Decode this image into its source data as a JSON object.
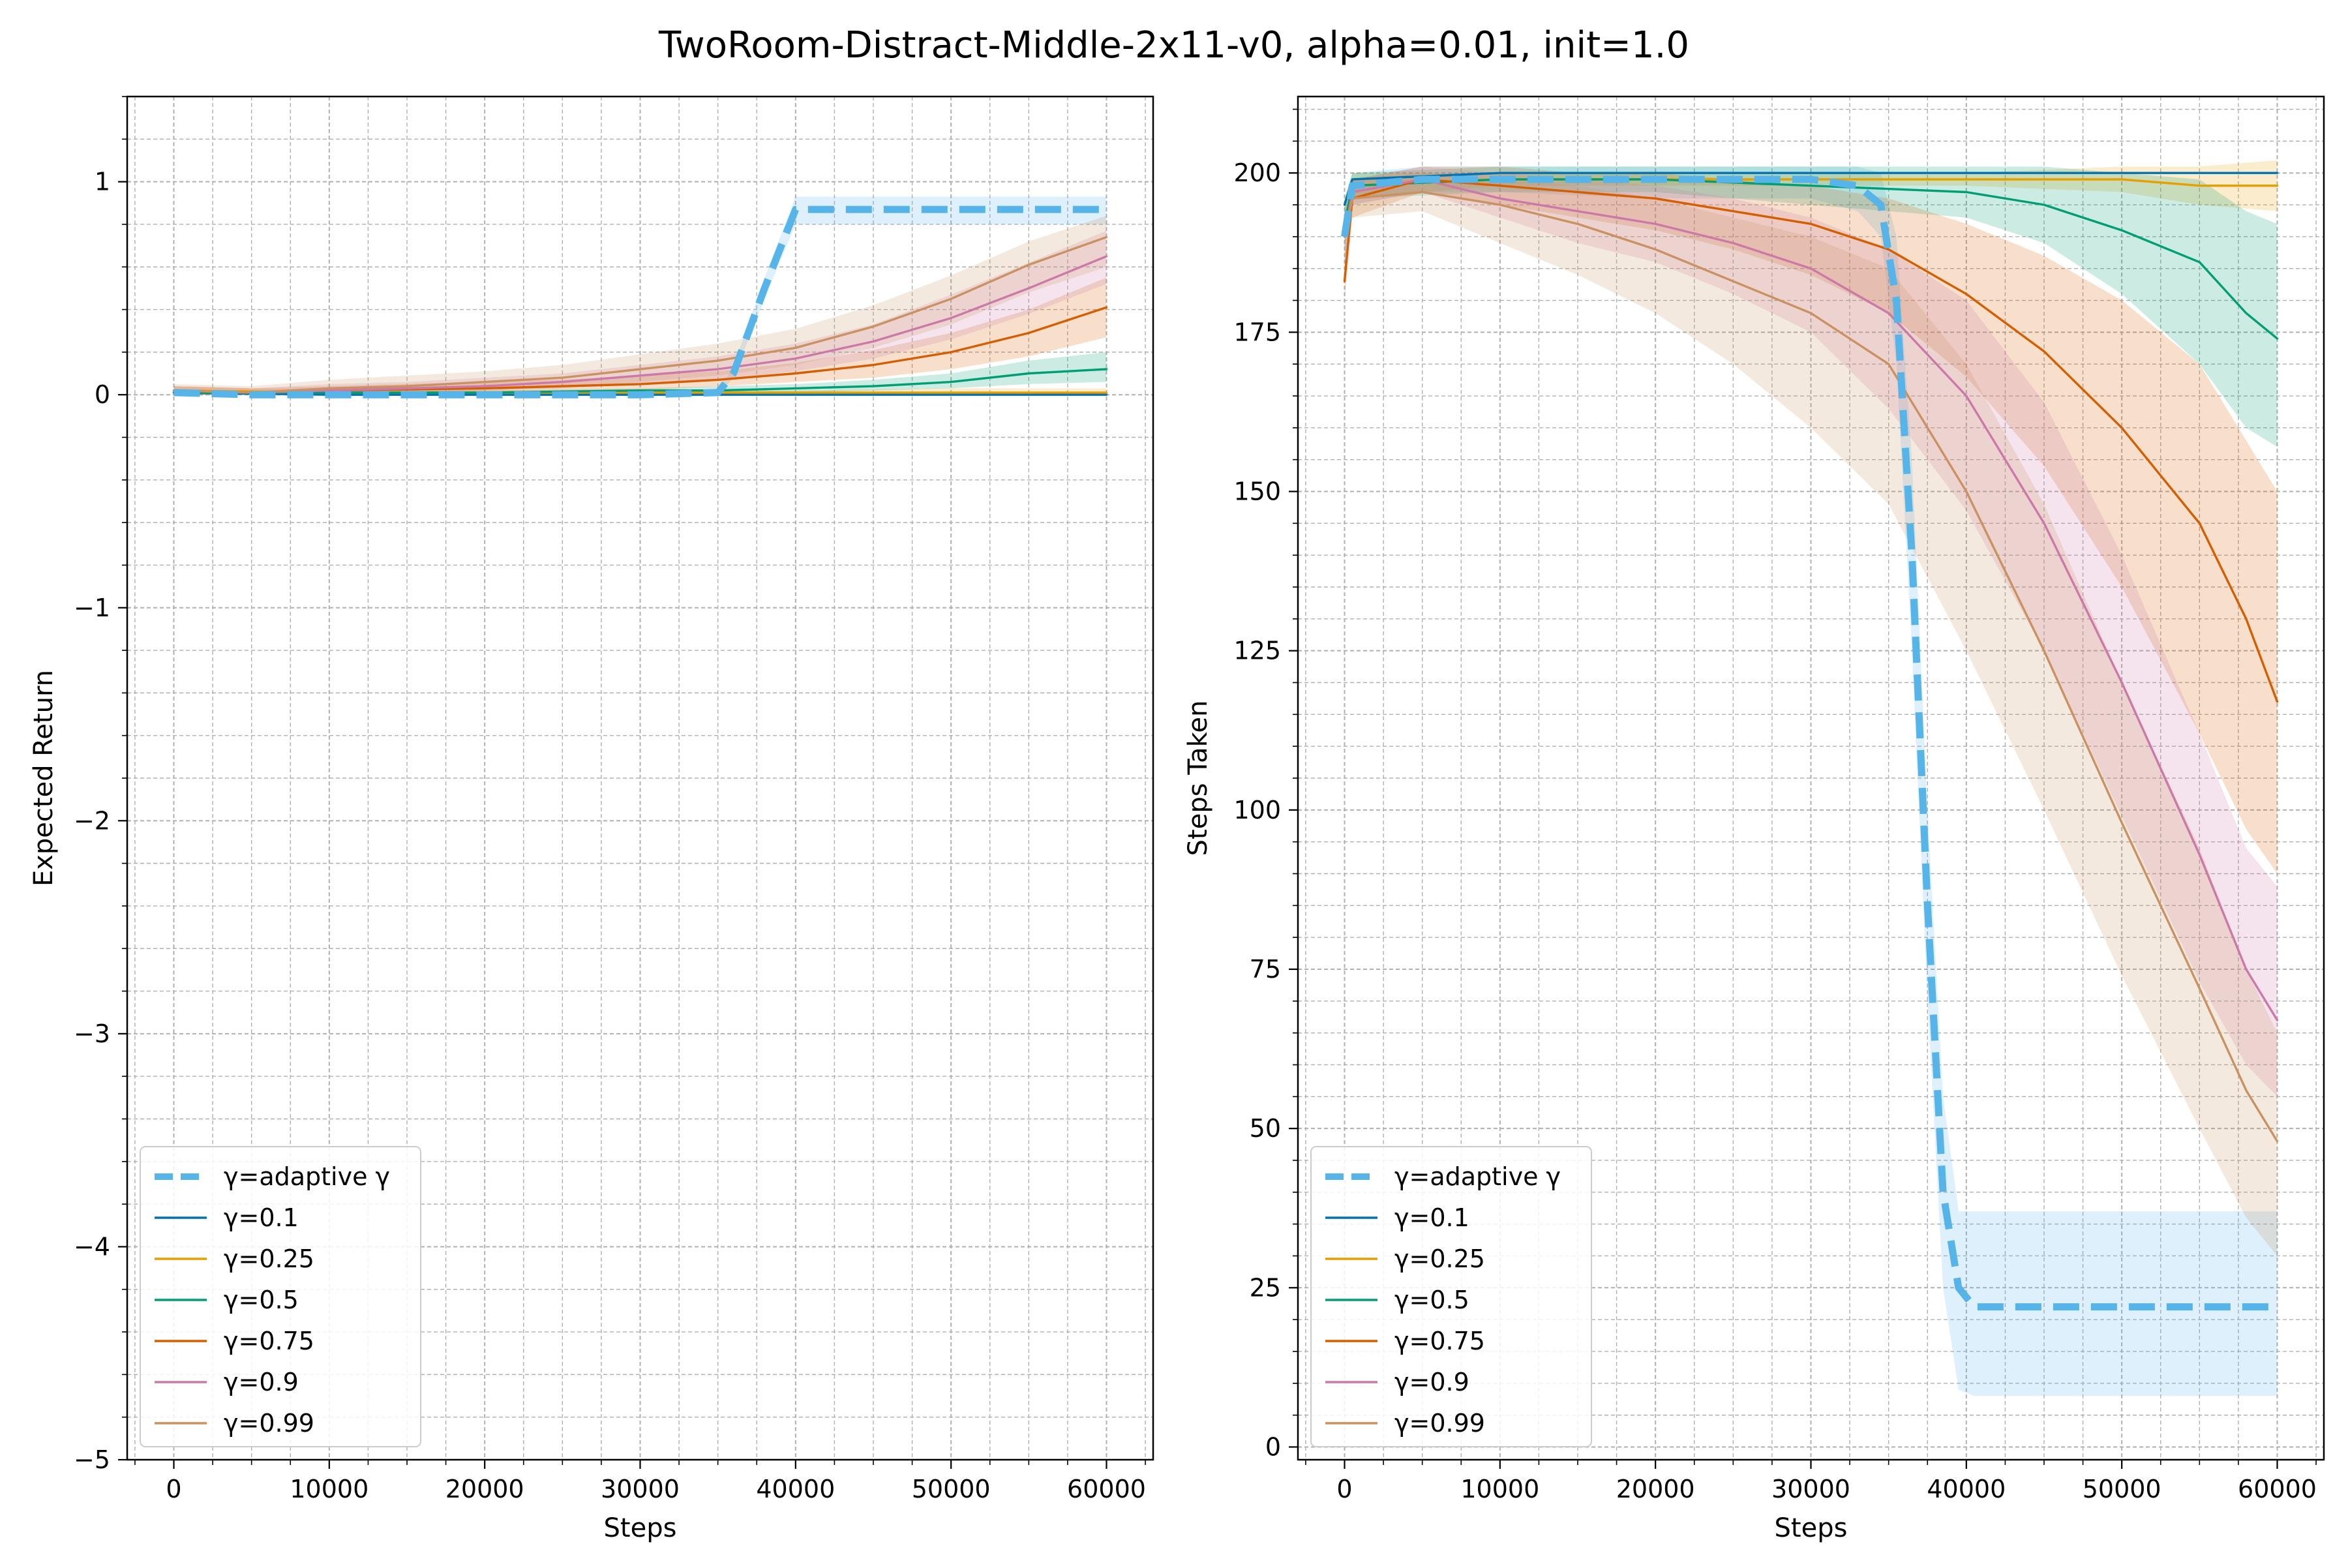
{
  "figure": {
    "title": "TwoRoom-Distract-Middle-2x11-v0, alpha=0.01, init=1.0"
  },
  "colors": {
    "adaptive": "#56b4e9",
    "g01": "#0072b2",
    "g025": "#e69f00",
    "g05": "#009e73",
    "g075": "#d55e00",
    "g09": "#cc79a7",
    "g099": "#ca9161",
    "grid": "#b0b0b0"
  },
  "chart_data": [
    {
      "type": "line",
      "xlabel": "Steps",
      "ylabel": "Expected Return",
      "xlim": [
        -3000,
        63000
      ],
      "ylim": [
        -5,
        1.4
      ],
      "xticks": [
        0,
        10000,
        20000,
        30000,
        40000,
        50000,
        60000
      ],
      "xtick_labels": [
        "0",
        "10000",
        "20000",
        "30000",
        "40000",
        "50000",
        "60000"
      ],
      "yticks": [
        1,
        0,
        -1,
        -2,
        -3,
        -4,
        -5
      ],
      "ytick_labels": [
        "1",
        "0",
        "−1",
        "−2",
        "−3",
        "−4",
        "−5"
      ],
      "grid": true,
      "legend_position": "lower-left",
      "legend": [
        "γ=adaptive γ",
        "γ=0.1",
        "γ=0.25",
        "γ=0.5",
        "γ=0.75",
        "γ=0.9",
        "γ=0.99"
      ],
      "series": [
        {
          "name": "γ=adaptive γ",
          "color_key": "adaptive",
          "dashed": true,
          "x": [
            0,
            5000,
            10000,
            20000,
            30000,
            35000,
            36000,
            38000,
            40000,
            45000,
            50000,
            55000,
            60000
          ],
          "y": [
            0.01,
            0.0,
            0.0,
            0.0,
            0.0,
            0.01,
            0.1,
            0.5,
            0.87,
            0.87,
            0.87,
            0.87,
            0.87
          ],
          "lower": [
            0,
            0,
            0,
            0,
            0,
            0,
            0.08,
            0.45,
            0.8,
            0.8,
            0.8,
            0.8,
            0.8
          ],
          "upper": [
            0.02,
            0.01,
            0.01,
            0.01,
            0.01,
            0.02,
            0.13,
            0.55,
            0.93,
            0.93,
            0.93,
            0.93,
            0.93
          ]
        },
        {
          "name": "γ=0.1",
          "color_key": "g01",
          "dashed": false,
          "x": [
            0,
            10000,
            20000,
            30000,
            40000,
            50000,
            60000
          ],
          "y": [
            0.01,
            0.0,
            0.0,
            0.0,
            0.0,
            0.0,
            0.0
          ]
        },
        {
          "name": "γ=0.25",
          "color_key": "g025",
          "dashed": false,
          "x": [
            0,
            10000,
            20000,
            30000,
            40000,
            50000,
            60000
          ],
          "y": [
            0.02,
            0.01,
            0.01,
            0.01,
            0.01,
            0.01,
            0.01
          ],
          "lower": [
            0,
            0,
            0,
            0,
            0,
            0,
            0
          ],
          "upper": [
            0.04,
            0.02,
            0.02,
            0.02,
            0.02,
            0.03,
            0.03
          ]
        },
        {
          "name": "γ=0.5",
          "color_key": "g05",
          "dashed": false,
          "x": [
            0,
            10000,
            20000,
            30000,
            35000,
            40000,
            45000,
            50000,
            55000,
            60000
          ],
          "y": [
            0.01,
            0.01,
            0.01,
            0.02,
            0.02,
            0.03,
            0.04,
            0.06,
            0.1,
            0.12
          ],
          "lower": [
            0,
            0,
            0,
            0,
            0.01,
            0.01,
            0.02,
            0.03,
            0.05,
            0.06
          ],
          "upper": [
            0.02,
            0.02,
            0.02,
            0.03,
            0.04,
            0.05,
            0.07,
            0.1,
            0.16,
            0.2
          ]
        },
        {
          "name": "γ=0.75",
          "color_key": "g075",
          "dashed": false,
          "x": [
            0,
            5000,
            10000,
            20000,
            25000,
            30000,
            35000,
            40000,
            45000,
            50000,
            55000,
            60000
          ],
          "y": [
            0.02,
            0.01,
            0.02,
            0.03,
            0.04,
            0.05,
            0.07,
            0.1,
            0.14,
            0.2,
            0.29,
            0.41
          ],
          "lower": [
            0.0,
            0.0,
            0.0,
            0.01,
            0.02,
            0.02,
            0.04,
            0.06,
            0.08,
            0.12,
            0.18,
            0.27
          ],
          "upper": [
            0.04,
            0.03,
            0.04,
            0.06,
            0.07,
            0.09,
            0.11,
            0.15,
            0.21,
            0.29,
            0.4,
            0.55
          ]
        },
        {
          "name": "γ=0.9",
          "color_key": "g09",
          "dashed": false,
          "x": [
            0,
            5000,
            10000,
            15000,
            20000,
            25000,
            30000,
            35000,
            40000,
            45000,
            50000,
            55000,
            60000
          ],
          "y": [
            0.02,
            0.01,
            0.02,
            0.03,
            0.04,
            0.06,
            0.09,
            0.12,
            0.17,
            0.25,
            0.36,
            0.5,
            0.65
          ],
          "lower": [
            0.0,
            0.0,
            0.0,
            0.01,
            0.02,
            0.03,
            0.05,
            0.07,
            0.11,
            0.17,
            0.26,
            0.38,
            0.52
          ],
          "upper": [
            0.04,
            0.03,
            0.05,
            0.06,
            0.08,
            0.1,
            0.14,
            0.18,
            0.24,
            0.33,
            0.47,
            0.62,
            0.77
          ]
        },
        {
          "name": "γ=0.99",
          "color_key": "g099",
          "dashed": false,
          "x": [
            0,
            5000,
            10000,
            15000,
            20000,
            25000,
            30000,
            35000,
            40000,
            45000,
            50000,
            55000,
            60000
          ],
          "y": [
            0.02,
            0.01,
            0.03,
            0.04,
            0.06,
            0.08,
            0.12,
            0.16,
            0.22,
            0.32,
            0.45,
            0.61,
            0.74
          ],
          "lower": [
            0.0,
            0.0,
            0.0,
            0.01,
            0.02,
            0.03,
            0.06,
            0.09,
            0.14,
            0.22,
            0.33,
            0.48,
            0.6
          ],
          "upper": [
            0.05,
            0.04,
            0.07,
            0.09,
            0.11,
            0.14,
            0.19,
            0.24,
            0.31,
            0.42,
            0.56,
            0.72,
            0.84
          ]
        }
      ]
    },
    {
      "type": "line",
      "xlabel": "Steps",
      "ylabel": "Steps Taken",
      "xlim": [
        -3000,
        63000
      ],
      "ylim": [
        -2,
        212
      ],
      "xticks": [
        0,
        10000,
        20000,
        30000,
        40000,
        50000,
        60000
      ],
      "xtick_labels": [
        "0",
        "10000",
        "20000",
        "30000",
        "40000",
        "50000",
        "60000"
      ],
      "yticks": [
        200,
        175,
        150,
        125,
        100,
        75,
        50,
        25,
        0
      ],
      "ytick_labels": [
        "200",
        "175",
        "150",
        "125",
        "100",
        "75",
        "50",
        "25",
        "0"
      ],
      "grid": true,
      "legend_position": "lower-left",
      "legend": [
        "γ=adaptive γ",
        "γ=0.1",
        "γ=0.25",
        "γ=0.5",
        "γ=0.75",
        "γ=0.9",
        "γ=0.99"
      ],
      "series": [
        {
          "name": "γ=adaptive γ",
          "color_key": "adaptive",
          "dashed": true,
          "x": [
            0,
            500,
            5000,
            10000,
            20000,
            30000,
            33000,
            34500,
            35500,
            36500,
            37500,
            38500,
            39500,
            40500,
            45000,
            50000,
            55000,
            60000
          ],
          "y": [
            190,
            198,
            199,
            199,
            199,
            199,
            198,
            195,
            180,
            140,
            85,
            40,
            25,
            22,
            22,
            22,
            22,
            22
          ],
          "lower": [
            185,
            195,
            197,
            197,
            196,
            196,
            194,
            190,
            170,
            125,
            70,
            25,
            9,
            8,
            8,
            8,
            8,
            8
          ],
          "upper": [
            195,
            200,
            201,
            201,
            201,
            201,
            201,
            200,
            190,
            155,
            100,
            55,
            37,
            37,
            37,
            37,
            37,
            37
          ]
        },
        {
          "name": "γ=0.1",
          "color_key": "g01",
          "dashed": false,
          "x": [
            0,
            500,
            10000,
            20000,
            30000,
            40000,
            50000,
            60000
          ],
          "y": [
            195,
            199,
            200,
            200,
            200,
            200,
            200,
            200
          ]
        },
        {
          "name": "γ=0.25",
          "color_key": "g025",
          "dashed": false,
          "x": [
            0,
            500,
            10000,
            20000,
            30000,
            40000,
            50000,
            55000,
            60000
          ],
          "y": [
            192,
            198,
            199,
            199,
            199,
            199,
            199,
            198,
            198
          ],
          "lower": [
            188,
            196,
            198,
            198,
            198,
            198,
            197,
            195,
            194
          ],
          "upper": [
            196,
            200,
            200,
            200,
            200,
            200,
            201,
            201,
            202
          ]
        },
        {
          "name": "γ=0.5",
          "color_key": "g05",
          "dashed": false,
          "x": [
            0,
            500,
            10000,
            20000,
            30000,
            40000,
            45000,
            50000,
            55000,
            58000,
            60000
          ],
          "y": [
            192,
            198,
            199,
            199,
            198,
            197,
            195,
            191,
            186,
            178,
            174
          ],
          "lower": [
            188,
            196,
            197,
            197,
            195,
            193,
            189,
            181,
            170,
            160,
            157
          ],
          "upper": [
            196,
            200,
            201,
            201,
            201,
            201,
            201,
            200,
            199,
            194,
            192
          ]
        },
        {
          "name": "γ=0.75",
          "color_key": "g075",
          "dashed": false,
          "x": [
            0,
            500,
            5000,
            10000,
            15000,
            20000,
            25000,
            30000,
            35000,
            40000,
            45000,
            50000,
            55000,
            58000,
            60000
          ],
          "y": [
            183,
            196,
            199,
            198,
            197,
            196,
            194,
            192,
            188,
            181,
            172,
            160,
            145,
            130,
            117
          ],
          "lower": [
            180,
            193,
            197,
            195,
            193,
            191,
            188,
            184,
            178,
            168,
            154,
            135,
            112,
            97,
            90
          ],
          "upper": [
            187,
            199,
            201,
            201,
            200,
            200,
            199,
            198,
            196,
            192,
            187,
            180,
            170,
            158,
            150
          ]
        },
        {
          "name": "γ=0.9",
          "color_key": "g09",
          "dashed": false,
          "x": [
            0,
            500,
            5000,
            10000,
            15000,
            20000,
            25000,
            30000,
            35000,
            40000,
            45000,
            50000,
            55000,
            58000,
            60000
          ],
          "y": [
            190,
            197,
            199,
            196,
            194,
            192,
            189,
            185,
            178,
            165,
            145,
            120,
            93,
            75,
            67
          ],
          "lower": [
            186,
            195,
            197,
            193,
            189,
            186,
            181,
            175,
            163,
            147,
            125,
            99,
            73,
            60,
            55
          ],
          "upper": [
            194,
            199,
            201,
            200,
            199,
            198,
            196,
            193,
            188,
            180,
            164,
            140,
            112,
            94,
            88
          ]
        },
        {
          "name": "γ=0.99",
          "color_key": "g099",
          "dashed": false,
          "x": [
            0,
            500,
            5000,
            10000,
            15000,
            20000,
            25000,
            30000,
            35000,
            40000,
            45000,
            50000,
            55000,
            58000,
            60000
          ],
          "y": [
            190,
            196,
            197,
            195,
            192,
            188,
            183,
            178,
            170,
            150,
            125,
            98,
            72,
            56,
            48
          ],
          "lower": [
            186,
            193,
            194,
            189,
            184,
            178,
            170,
            160,
            148,
            125,
            100,
            74,
            50,
            36,
            30
          ],
          "upper": [
            194,
            199,
            200,
            199,
            198,
            196,
            193,
            190,
            185,
            170,
            148,
            120,
            94,
            75,
            65
          ]
        }
      ]
    }
  ]
}
